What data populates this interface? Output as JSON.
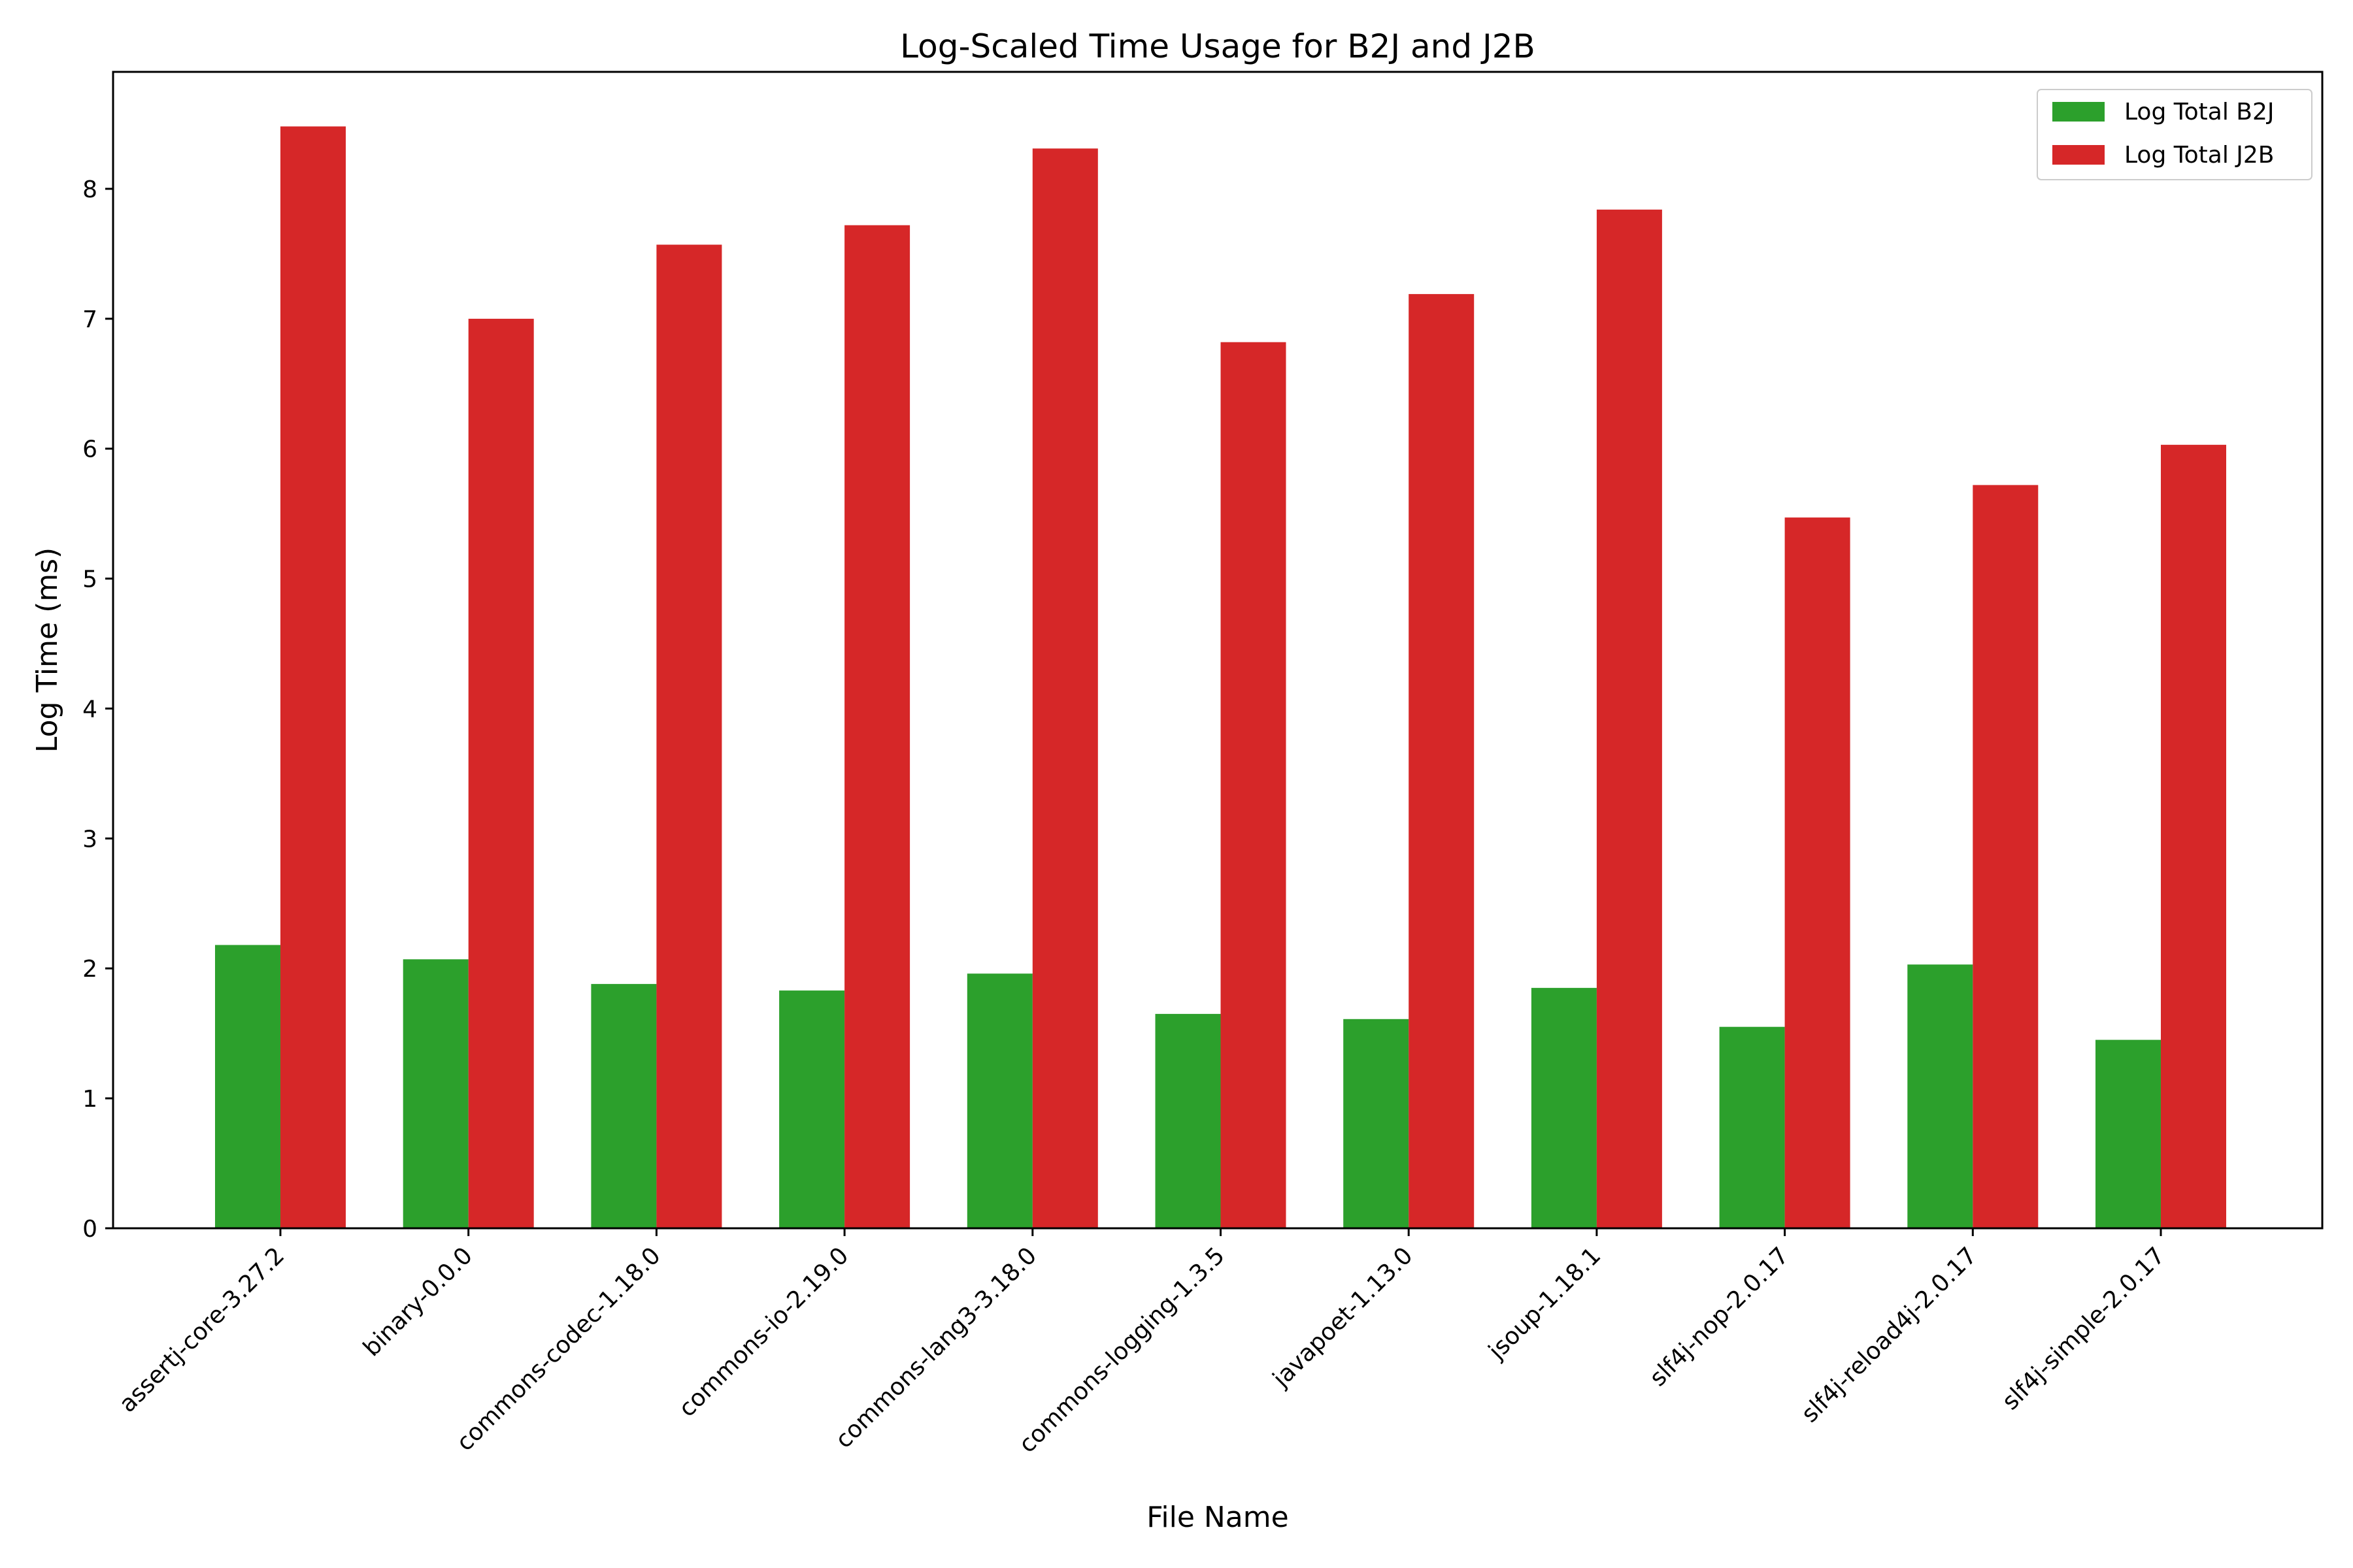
{
  "chart_data": {
    "type": "bar",
    "title": "Log-Scaled Time Usage for B2J and J2B",
    "xlabel": "File Name",
    "ylabel": "Log Time (ms)",
    "categories": [
      "assertj-core-3.27.2",
      "binary-0.0.0",
      "commons-codec-1.18.0",
      "commons-io-2.19.0",
      "commons-lang3-3.18.0",
      "commons-logging-1.3.5",
      "javapoet-1.13.0",
      "jsoup-1.18.1",
      "slf4j-nop-2.0.17",
      "slf4j-reload4j-2.0.17",
      "slf4j-simple-2.0.17"
    ],
    "series": [
      {
        "name": "Log Total B2J",
        "color": "#2ca02c",
        "values": [
          2.18,
          2.07,
          1.88,
          1.83,
          1.96,
          1.65,
          1.61,
          1.85,
          1.55,
          2.03,
          1.45
        ]
      },
      {
        "name": "Log Total J2B",
        "color": "#d62728",
        "values": [
          8.48,
          7.0,
          7.57,
          7.72,
          8.31,
          6.82,
          7.19,
          7.84,
          5.47,
          5.72,
          6.03
        ]
      }
    ],
    "ylim": [
      0,
      8.9
    ],
    "yticks": [
      0,
      1,
      2,
      3,
      4,
      5,
      6,
      7,
      8
    ],
    "grid": false,
    "legend_position": "top-right"
  }
}
